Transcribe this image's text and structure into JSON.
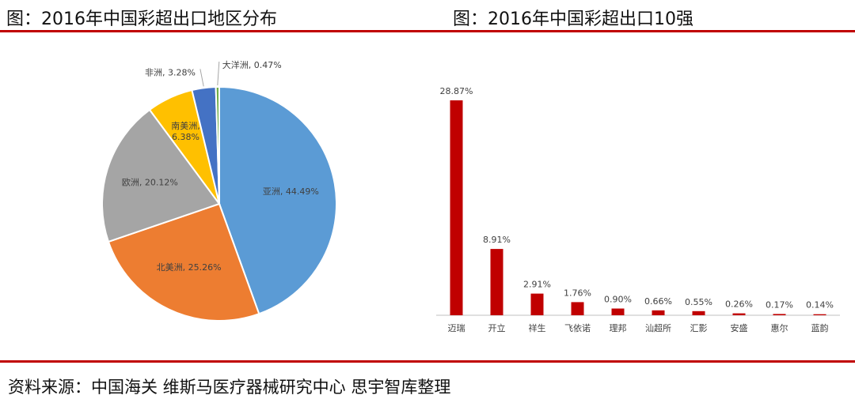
{
  "header": {
    "left_title": "图：2016年中国彩超出口地区分布",
    "right_title": "图：2016年中国彩超出口10强"
  },
  "footer": {
    "source": "资料来源：中国海关  维斯马医疗器械研究中心  思宇智库整理"
  },
  "chart_data": [
    {
      "type": "pie",
      "title": "图：2016年中国彩超出口地区分布",
      "slices": [
        {
          "label": "亚洲",
          "value": 44.49,
          "display": "亚洲, 44.49%",
          "color": "#5b9bd5"
        },
        {
          "label": "北美洲",
          "value": 25.26,
          "display": "北美洲, 25.26%",
          "color": "#ed7d31"
        },
        {
          "label": "欧洲",
          "value": 20.12,
          "display": "欧洲, 20.12%",
          "color": "#a5a5a5"
        },
        {
          "label": "南美洲",
          "value": 6.38,
          "display": "南美洲, 6.38%",
          "color": "#ffc000"
        },
        {
          "label": "非洲",
          "value": 3.28,
          "display": "非洲, 3.28%",
          "color": "#4472c4"
        },
        {
          "label": "大洋洲",
          "value": 0.47,
          "display": "大洋洲, 0.47%",
          "color": "#70ad47"
        }
      ]
    },
    {
      "type": "bar",
      "title": "图：2016年中国彩超出口10强",
      "categories": [
        "迈瑞",
        "开立",
        "祥生",
        "飞依诺",
        "理邦",
        "汕超所",
        "汇影",
        "安盛",
        "惠尔",
        "蓝韵"
      ],
      "values": [
        28.87,
        8.91,
        2.91,
        1.76,
        0.9,
        0.66,
        0.55,
        0.26,
        0.17,
        0.14
      ],
      "data_labels": [
        "28.87%",
        "8.91%",
        "2.91%",
        "1.76%",
        "0.90%",
        "0.66%",
        "0.55%",
        "0.26%",
        "0.17%",
        "0.14%"
      ],
      "bar_color": "#c00000",
      "ylim": [
        0,
        30
      ]
    }
  ]
}
